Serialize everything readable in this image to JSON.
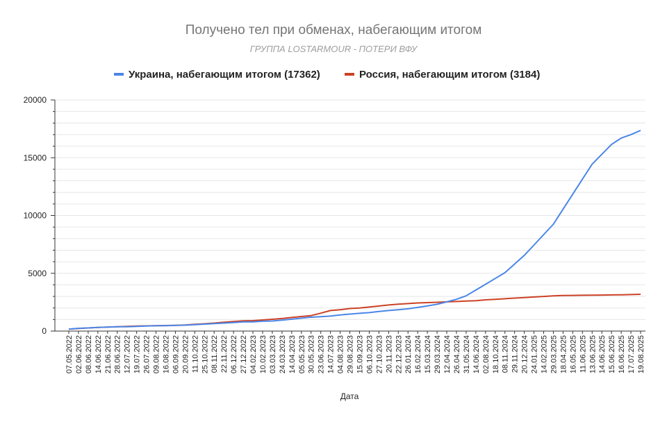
{
  "chart_data": {
    "type": "line",
    "title": "Получено тел при обменах, набегающим итогом",
    "subtitle": "ГРУППА LOSTARMOUR - ПОТЕРИ ВФУ",
    "xlabel": "Дата",
    "ylabel": "",
    "ylim": [
      0,
      20000
    ],
    "yticks": [
      0,
      5000,
      10000,
      15000,
      20000
    ],
    "grid": true,
    "legend_position": "top",
    "categories": [
      "07.05.2022",
      "02.06.2022",
      "08.06.2022",
      "14.06.2022",
      "21.06.2022",
      "28.06.2022",
      "12.07.2022",
      "19.07.2022",
      "26.07.2022",
      "09.08.2022",
      "16.08.2022",
      "06.09.2022",
      "20.09.2022",
      "11.10.2022",
      "25.10.2022",
      "08.11.2022",
      "22.11.2022",
      "06.12.2022",
      "27.12.2022",
      "04.02.2023",
      "10.02.2023",
      "03.03.2023",
      "24.03.2023",
      "14.04.2023",
      "05.05.2023",
      "30.05.2023",
      "23.06.2023",
      "14.07.2023",
      "04.08.2023",
      "29.08.2023",
      "15.09.2023",
      "06.10.2023",
      "27.10.2023",
      "20.11.2023",
      "22.12.2023",
      "26.01.2024",
      "16.02.2024",
      "15.03.2024",
      "29.03.2024",
      "12.04.2024",
      "26.04.2024",
      "31.05.2024",
      "14.06.2024",
      "02.08.2024",
      "18.10.2024",
      "08.11.2024",
      "29.11.2024",
      "20.12.2024",
      "24.01.2025",
      "14.02.2025",
      "29.03.2025",
      "18.04.2025",
      "16.05.2025",
      "11.06.2025",
      "13.06.2025",
      "14.06.2025",
      "15.06.2025",
      "16.06.2025",
      "17.07.2025",
      "19.08.2025"
    ],
    "series": [
      {
        "name": "Украина, набегающим итогом (17362)",
        "color": "#4a86e8",
        "values": [
          160,
          240,
          270,
          310,
          340,
          370,
          380,
          410,
          440,
          460,
          470,
          490,
          510,
          560,
          600,
          640,
          690,
          740,
          790,
          800,
          850,
          870,
          950,
          1030,
          1120,
          1200,
          1250,
          1300,
          1400,
          1470,
          1540,
          1600,
          1700,
          1780,
          1850,
          1930,
          2050,
          2180,
          2320,
          2530,
          2750,
          3050,
          3550,
          4050,
          4550,
          5050,
          5800,
          6550,
          7450,
          8350,
          9250,
          10550,
          11850,
          13150,
          14450,
          15300,
          16150,
          16700,
          17000,
          17362
        ]
      },
      {
        "name": "Россия, набегающим итогом (3184)",
        "color": "#cc4125",
        "values": [
          160,
          230,
          270,
          320,
          350,
          380,
          400,
          430,
          450,
          460,
          480,
          500,
          530,
          580,
          630,
          690,
          760,
          820,
          880,
          900,
          960,
          1020,
          1090,
          1180,
          1260,
          1340,
          1550,
          1780,
          1850,
          1950,
          2000,
          2080,
          2170,
          2260,
          2330,
          2380,
          2430,
          2460,
          2490,
          2530,
          2560,
          2600,
          2630,
          2700,
          2750,
          2800,
          2850,
          2900,
          2950,
          3000,
          3050,
          3080,
          3090,
          3100,
          3110,
          3120,
          3130,
          3140,
          3160,
          3184
        ]
      }
    ]
  }
}
